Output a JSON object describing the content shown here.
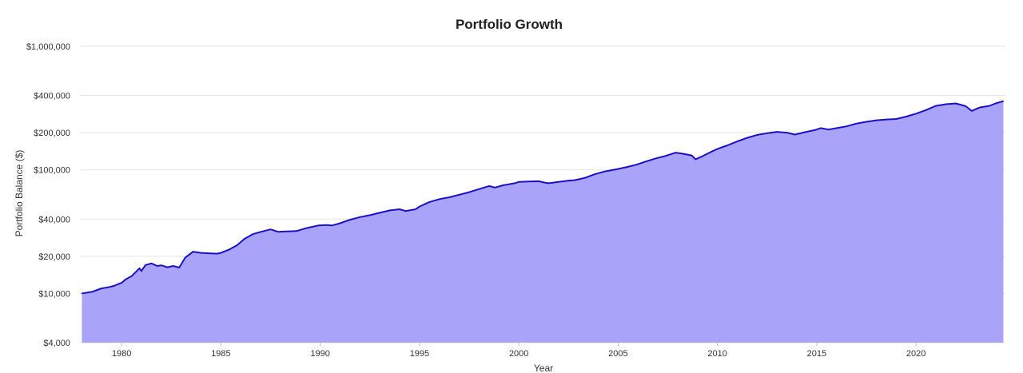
{
  "chart_data": {
    "type": "area",
    "title": "Portfolio Growth",
    "xlabel": "Year",
    "ylabel": "Portfolio Balance ($)",
    "y_scale": "log",
    "xlim": [
      1977.9,
      2024.5
    ],
    "ylim": [
      4000,
      1000000
    ],
    "x_ticks": [
      1980,
      1985,
      1990,
      1995,
      2000,
      2005,
      2010,
      2015,
      2020
    ],
    "y_ticks": [
      {
        "value": 4000,
        "label": "$4,000"
      },
      {
        "value": 10000,
        "label": "$10,000"
      },
      {
        "value": 20000,
        "label": "$20,000"
      },
      {
        "value": 40000,
        "label": "$40,000"
      },
      {
        "value": 100000,
        "label": "$100,000"
      },
      {
        "value": 200000,
        "label": "$200,000"
      },
      {
        "value": 400000,
        "label": "$400,000"
      },
      {
        "value": 1000000,
        "label": "$1,000,000"
      }
    ],
    "grid": true,
    "colors": {
      "line": "#1a10c8",
      "fill": "#a9a4fa"
    },
    "series": [
      {
        "name": "Portfolio Balance",
        "x": [
          1978.0,
          1978.5,
          1979.0,
          1979.3,
          1979.6,
          1980.0,
          1980.2,
          1980.5,
          1980.9,
          1981.0,
          1981.2,
          1981.5,
          1981.8,
          1982.0,
          1982.3,
          1982.6,
          1982.9,
          1983.2,
          1983.6,
          1984.0,
          1984.5,
          1984.8,
          1985.0,
          1985.4,
          1985.8,
          1986.2,
          1986.6,
          1987.0,
          1987.5,
          1987.9,
          1988.3,
          1988.8,
          1989.3,
          1989.9,
          1990.3,
          1990.6,
          1991.0,
          1991.5,
          1992.0,
          1992.5,
          1993.0,
          1993.5,
          1994.0,
          1994.3,
          1994.8,
          1995.0,
          1995.5,
          1996.0,
          1996.5,
          1997.0,
          1997.5,
          1998.0,
          1998.5,
          1998.8,
          1999.2,
          1999.8,
          2000.0,
          2000.5,
          2001.0,
          2001.3,
          2001.5,
          2002.0,
          2002.5,
          2002.8,
          2003.3,
          2003.8,
          2004.3,
          2004.9,
          2005.4,
          2005.9,
          2006.4,
          2006.9,
          2007.4,
          2007.9,
          2008.3,
          2008.7,
          2008.9,
          2009.2,
          2009.6,
          2010.0,
          2010.5,
          2011.0,
          2011.5,
          2012.0,
          2012.5,
          2013.0,
          2013.5,
          2013.9,
          2014.4,
          2014.9,
          2015.2,
          2015.6,
          2016.0,
          2016.5,
          2017.0,
          2017.5,
          2018.0,
          2018.5,
          2019.0,
          2019.5,
          2020.0,
          2020.5,
          2021.0,
          2021.5,
          2022.0,
          2022.5,
          2022.8,
          2023.2,
          2023.7,
          2024.0,
          2024.4
        ],
        "values": [
          10000,
          10300,
          11000,
          11200,
          11500,
          12200,
          13000,
          13800,
          16000,
          15200,
          17000,
          17500,
          16700,
          16900,
          16300,
          16700,
          16200,
          19500,
          21800,
          21300,
          21100,
          21000,
          21300,
          22600,
          24500,
          27800,
          30200,
          31500,
          33000,
          31500,
          31800,
          32000,
          33800,
          35500,
          35800,
          35500,
          37000,
          39500,
          41500,
          43000,
          45000,
          47000,
          48000,
          46500,
          48000,
          50500,
          55000,
          58000,
          60000,
          63000,
          66000,
          70000,
          74000,
          72000,
          75000,
          78000,
          80000,
          80500,
          81000,
          79000,
          78000,
          80000,
          82000,
          82500,
          86000,
          92000,
          97000,
          101000,
          105000,
          110000,
          117000,
          124000,
          130000,
          138000,
          135000,
          131000,
          122000,
          128000,
          138000,
          148000,
          158000,
          170000,
          182000,
          192000,
          198000,
          203000,
          200000,
          193000,
          202000,
          210000,
          218000,
          212000,
          218000,
          225000,
          237000,
          245000,
          252000,
          256000,
          258000,
          270000,
          285000,
          305000,
          330000,
          340000,
          345000,
          328000,
          300000,
          320000,
          330000,
          345000,
          360000
        ]
      }
    ]
  }
}
